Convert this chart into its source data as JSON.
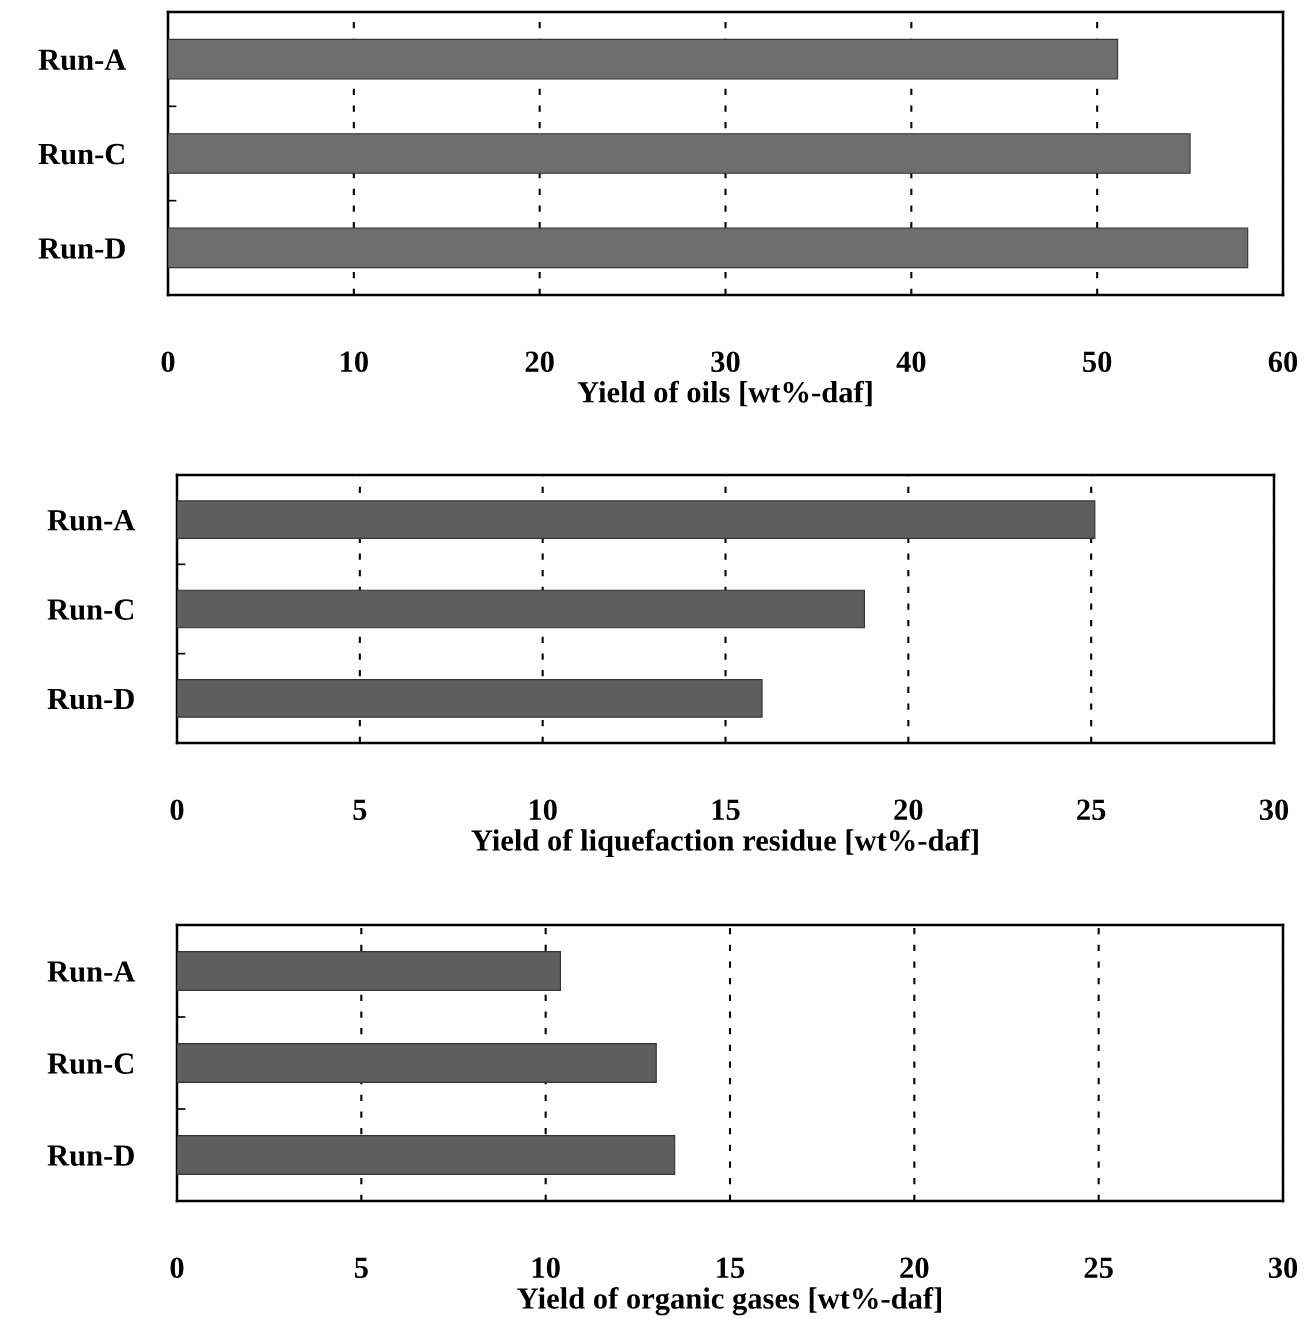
{
  "chart_data": [
    {
      "type": "bar",
      "orientation": "horizontal",
      "categories": [
        "Run-A",
        "Run-C",
        "Run-D"
      ],
      "values": [
        51.1,
        55.0,
        58.1
      ],
      "color": "#6e6e6e",
      "xlabel": "Yield of oils [wt%-daf]",
      "xlim": [
        0,
        60
      ],
      "xticks": [
        0,
        10,
        20,
        30,
        40,
        50,
        60
      ],
      "grid": "x"
    },
    {
      "type": "bar",
      "orientation": "horizontal",
      "categories": [
        "Run-A",
        "Run-C",
        "Run-D"
      ],
      "values": [
        25.1,
        18.8,
        16.0
      ],
      "color": "#5e5e5e",
      "xlabel": "Yield of liquefaction residue [wt%-daf]",
      "xlim": [
        0,
        30
      ],
      "xticks": [
        0,
        5,
        10,
        15,
        20,
        25,
        30
      ],
      "grid": "x"
    },
    {
      "type": "bar",
      "orientation": "horizontal",
      "categories": [
        "Run-A",
        "Run-C",
        "Run-D"
      ],
      "values": [
        10.4,
        13.0,
        13.5
      ],
      "color": "#5e5e5e",
      "xlabel": "Yield of organic gases [wt%-daf]",
      "xlim": [
        0,
        30
      ],
      "xticks": [
        0,
        5,
        10,
        15,
        20,
        25,
        30
      ],
      "grid": "x"
    }
  ]
}
